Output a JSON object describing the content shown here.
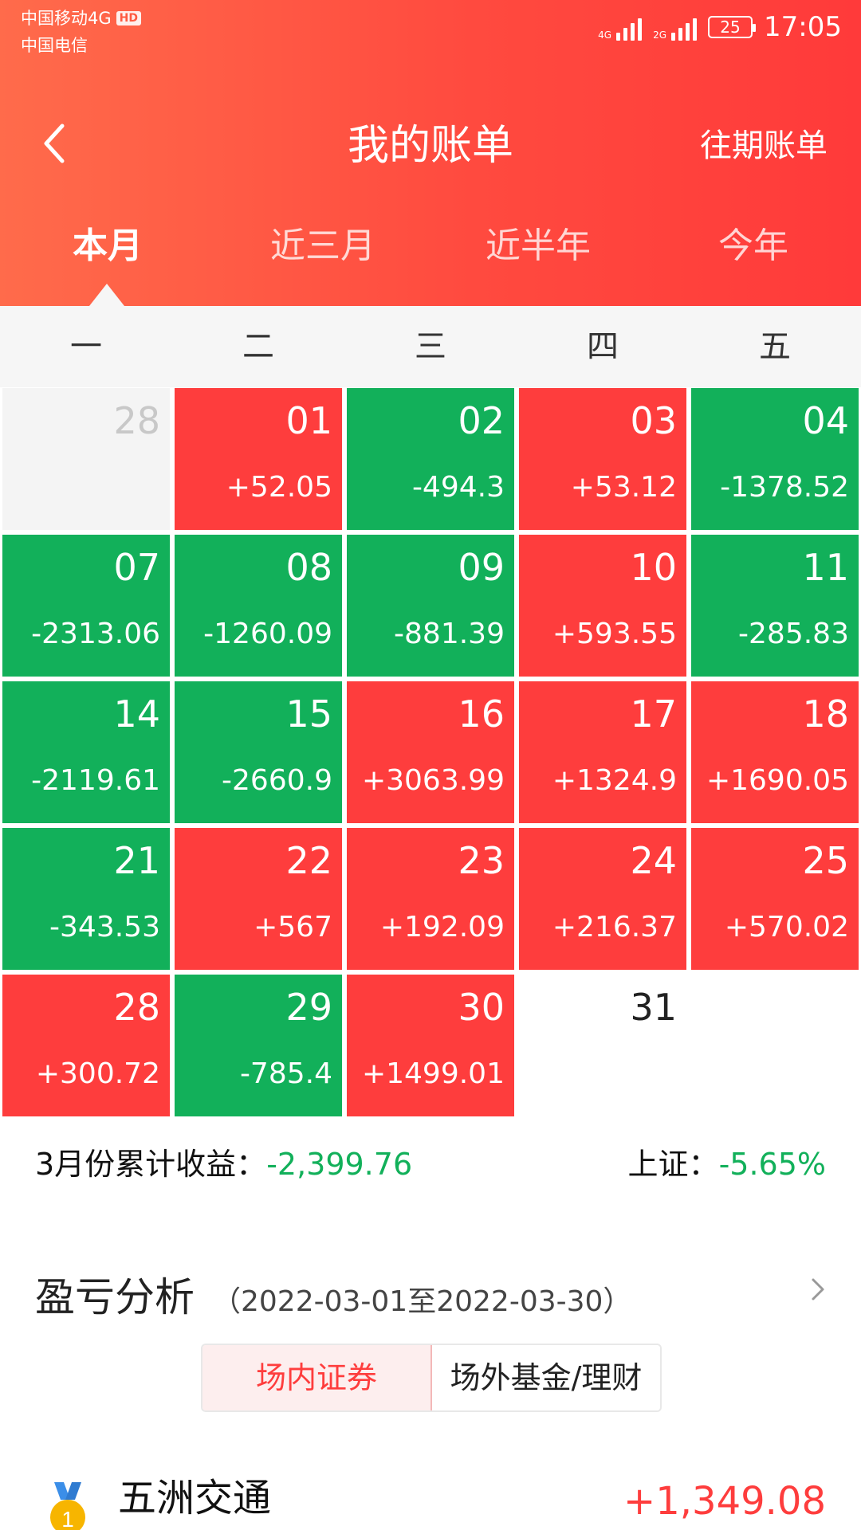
{
  "status_bar": {
    "carrier1": "中国移动4G",
    "hd": "HD",
    "carrier2": "中国电信",
    "sig1_label": "4G",
    "sig2_label": "2G",
    "battery": "25",
    "time": "17:05"
  },
  "header": {
    "title": "我的账单",
    "history_link": "往期账单",
    "back_icon": "chevron-left-icon"
  },
  "tabs": [
    {
      "label": "本月",
      "active": true
    },
    {
      "label": "近三月",
      "active": false
    },
    {
      "label": "近半年",
      "active": false
    },
    {
      "label": "今年",
      "active": false
    }
  ],
  "weekdays": [
    "一",
    "二",
    "三",
    "四",
    "五"
  ],
  "calendar": [
    [
      {
        "day": "28",
        "amount": "",
        "kind": "empty"
      },
      {
        "day": "01",
        "amount": "+52.05",
        "kind": "up"
      },
      {
        "day": "02",
        "amount": "-494.3",
        "kind": "down"
      },
      {
        "day": "03",
        "amount": "+53.12",
        "kind": "up"
      },
      {
        "day": "04",
        "amount": "-1378.52",
        "kind": "down"
      }
    ],
    [
      {
        "day": "07",
        "amount": "-2313.06",
        "kind": "down"
      },
      {
        "day": "08",
        "amount": "-1260.09",
        "kind": "down"
      },
      {
        "day": "09",
        "amount": "-881.39",
        "kind": "down"
      },
      {
        "day": "10",
        "amount": "+593.55",
        "kind": "up"
      },
      {
        "day": "11",
        "amount": "-285.83",
        "kind": "down"
      }
    ],
    [
      {
        "day": "14",
        "amount": "-2119.61",
        "kind": "down"
      },
      {
        "day": "15",
        "amount": "-2660.9",
        "kind": "down"
      },
      {
        "day": "16",
        "amount": "+3063.99",
        "kind": "up"
      },
      {
        "day": "17",
        "amount": "+1324.9",
        "kind": "up"
      },
      {
        "day": "18",
        "amount": "+1690.05",
        "kind": "up"
      }
    ],
    [
      {
        "day": "21",
        "amount": "-343.53",
        "kind": "down"
      },
      {
        "day": "22",
        "amount": "+567",
        "kind": "up"
      },
      {
        "day": "23",
        "amount": "+192.09",
        "kind": "up"
      },
      {
        "day": "24",
        "amount": "+216.37",
        "kind": "up"
      },
      {
        "day": "25",
        "amount": "+570.02",
        "kind": "up"
      }
    ],
    [
      {
        "day": "28",
        "amount": "+300.72",
        "kind": "up"
      },
      {
        "day": "29",
        "amount": "-785.4",
        "kind": "down"
      },
      {
        "day": "30",
        "amount": "+1499.01",
        "kind": "up"
      },
      {
        "day": "31",
        "amount": "",
        "kind": "today"
      }
    ]
  ],
  "summary": {
    "monthly_label": "3月份累计收益：",
    "monthly_value": "-2,399.76",
    "index_label": "上证：",
    "index_value": "-5.65%"
  },
  "analysis": {
    "title": "盈亏分析",
    "range": "（2022-03-01至2022-03-30）",
    "segments": [
      {
        "label": "场内证券",
        "active": true
      },
      {
        "label": "场外基金/理财",
        "active": false
      }
    ]
  },
  "ranking": [
    {
      "rank": "1",
      "name": "五洲交通",
      "pl": "+1,349.08"
    }
  ],
  "colors": {
    "up": "#fe3d3d",
    "down": "#12b05a",
    "header_start": "#ff6b4b",
    "header_end": "#ff3a3a"
  }
}
